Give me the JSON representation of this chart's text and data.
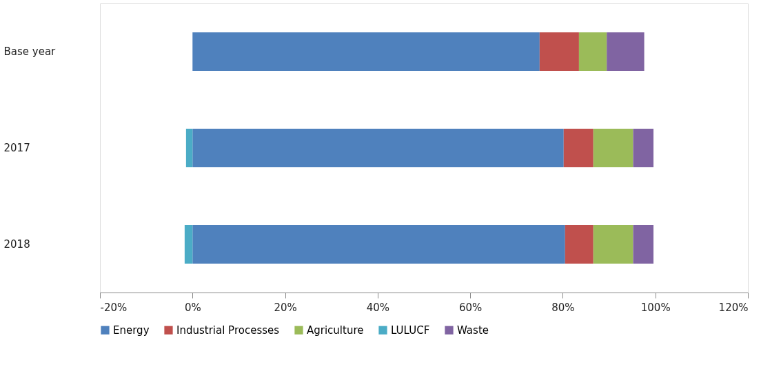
{
  "chart_data": {
    "type": "bar",
    "orientation": "horizontal",
    "stacked": true,
    "categories": [
      "Base year",
      "2017",
      "2018"
    ],
    "series": [
      {
        "name": "Energy",
        "color": "#4f81bd",
        "values": [
          75.0,
          80.2,
          80.5
        ]
      },
      {
        "name": "Industrial Processes",
        "color": "#c0504d",
        "values": [
          8.5,
          6.4,
          6.1
        ]
      },
      {
        "name": "Agriculture",
        "color": "#9bbb59",
        "values": [
          6.0,
          8.6,
          8.6
        ]
      },
      {
        "name": "LULUCF",
        "color": "#4bacc6",
        "values": [
          null,
          -1.4,
          -1.7
        ]
      },
      {
        "name": "Waste",
        "color": "#8064a2",
        "values": [
          8.1,
          4.4,
          4.4
        ]
      }
    ],
    "xlim": [
      -20,
      120
    ],
    "xticks": [
      {
        "value": -20,
        "label": "-20%"
      },
      {
        "value": 0,
        "label": "0%"
      },
      {
        "value": 20,
        "label": "20%"
      },
      {
        "value": 40,
        "label": "40%"
      },
      {
        "value": 60,
        "label": "60%"
      },
      {
        "value": 80,
        "label": "80%"
      },
      {
        "value": 100,
        "label": "100%"
      },
      {
        "value": 120,
        "label": "120%"
      }
    ],
    "grid": false,
    "legend": "bottom"
  }
}
